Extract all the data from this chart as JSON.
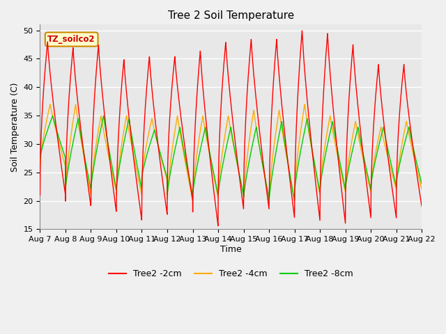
{
  "title": "Tree 2 Soil Temperature",
  "xlabel": "Time",
  "ylabel": "Soil Temperature (C)",
  "ylim": [
    15,
    51
  ],
  "yticks": [
    15,
    20,
    25,
    30,
    35,
    40,
    45,
    50
  ],
  "x_labels": [
    "Aug 7",
    "Aug 8",
    "Aug 9",
    "Aug 10",
    "Aug 11",
    "Aug 12",
    "Aug 13",
    "Aug 14",
    "Aug 15",
    "Aug 16",
    "Aug 17",
    "Aug 18",
    "Aug 19",
    "Aug 20",
    "Aug 21",
    "Aug 22"
  ],
  "annotation_text": "TZ_soilco2",
  "annotation_bg": "#ffffcc",
  "annotation_border": "#cc8800",
  "line_colors": {
    "2cm": "#ff0000",
    "4cm": "#ffaa00",
    "8cm": "#00cc00"
  },
  "legend_labels": [
    "Tree2 -2cm",
    "Tree2 -4cm",
    "Tree2 -8cm"
  ],
  "fig_bg": "#f0f0f0",
  "plot_bg": "#e8e8e8",
  "grid_color": "#ffffff",
  "title_fontsize": 11,
  "axis_label_fontsize": 9,
  "tick_fontsize": 8
}
